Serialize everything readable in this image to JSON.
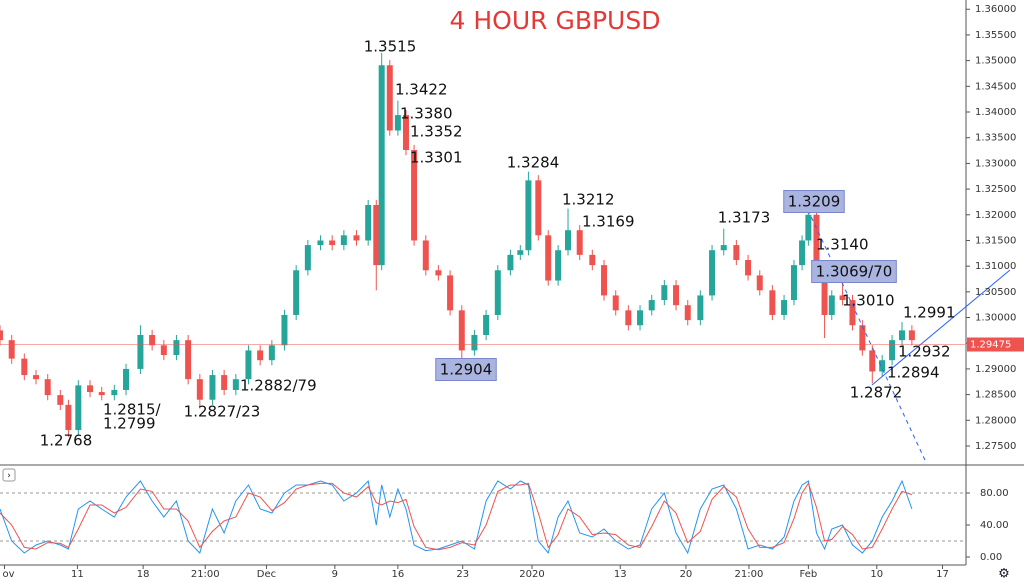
{
  "chart_data": {
    "type": "candlestick",
    "title": "4 HOUR GBPUSD",
    "x": [
      0,
      1.3,
      2.7,
      4,
      5.3,
      6.7,
      7.6,
      8.7,
      10,
      11.3,
      12.7,
      14,
      15.6,
      16.9,
      18.2,
      19.6,
      20.9,
      22.2,
      23.6,
      24.9,
      26.2,
      27.6,
      28.9,
      30.2,
      31.6,
      32.9,
      34.2,
      35.6,
      36.9,
      38.2,
      39.6,
      40.9,
      41.8,
      42.4,
      43.3,
      44.2,
      45.1,
      46,
      47.3,
      48.7,
      50,
      51.3,
      52.7,
      54,
      55.3,
      56.7,
      57.8,
      58.7,
      59.8,
      60.9,
      62,
      63.1,
      64.4,
      65.8,
      67.1,
      68.4,
      69.8,
      71.1,
      72.4,
      73.8,
      75.1,
      76.4,
      77.8,
      79.1,
      80.4,
      81.8,
      83.1,
      84.4,
      85.8,
      87.1,
      88.2,
      89.1,
      89.8,
      90.7,
      91.6,
      92.4,
      93.6,
      94.7,
      95.8,
      96.9,
      98,
      99.1,
      100.2,
      101.3
    ],
    "open": [
      1.2975,
      1.2956,
      1.292,
      1.2888,
      1.288,
      1.2849,
      1.283,
      1.2781,
      1.2868,
      1.2855,
      1.2849,
      1.2859,
      1.29,
      1.2966,
      1.2946,
      1.2927,
      1.2956,
      1.288,
      1.284,
      1.2888,
      1.2859,
      1.288,
      1.2936,
      1.2917,
      1.2946,
      1.3005,
      1.3092,
      1.3141,
      1.315,
      1.3141,
      1.316,
      1.315,
      1.3219,
      1.3102,
      1.3491,
      1.3364,
      1.3394,
      1.3326,
      1.315,
      1.3092,
      1.3082,
      1.3014,
      1.2936,
      1.2966,
      1.3005,
      1.3092,
      1.3122,
      1.3131,
      1.3267,
      1.316,
      1.3072,
      1.3131,
      1.317,
      1.3122,
      1.3102,
      1.3043,
      1.3014,
      1.2985,
      1.3014,
      1.3034,
      1.3063,
      1.3024,
      1.2995,
      1.3043,
      1.3131,
      1.3141,
      1.3112,
      1.3082,
      1.3053,
      1.3005,
      1.3034,
      1.3102,
      1.315,
      1.32,
      1.3092,
      1.3005,
      1.3043,
      1.3034,
      1.2985,
      1.2936,
      1.2895,
      1.2917,
      1.2956,
      1.2975
    ],
    "high": [
      1.2985,
      1.2966,
      1.293,
      1.2898,
      1.289,
      1.2859,
      1.284,
      1.2878,
      1.2878,
      1.2865,
      1.2869,
      1.291,
      1.2985,
      1.2976,
      1.2956,
      1.2966,
      1.2966,
      1.289,
      1.2898,
      1.2898,
      1.289,
      1.2946,
      1.2946,
      1.2956,
      1.3015,
      1.3102,
      1.3151,
      1.316,
      1.316,
      1.317,
      1.317,
      1.3229,
      1.3229,
      1.3515,
      1.3501,
      1.3422,
      1.3404,
      1.3336,
      1.316,
      1.3102,
      1.3092,
      1.3024,
      1.2976,
      1.3015,
      1.3102,
      1.3132,
      1.3141,
      1.3284,
      1.3277,
      1.317,
      1.3141,
      1.3212,
      1.318,
      1.3132,
      1.3112,
      1.3053,
      1.3024,
      1.3024,
      1.3044,
      1.3073,
      1.3073,
      1.3034,
      1.3053,
      1.3141,
      1.3173,
      1.3151,
      1.3122,
      1.3092,
      1.3063,
      1.3044,
      1.3112,
      1.316,
      1.3209,
      1.321,
      1.3102,
      1.3053,
      1.3069,
      1.3044,
      1.2995,
      1.2946,
      1.2927,
      1.2966,
      1.2991,
      1.2985
    ],
    "low": [
      1.2946,
      1.291,
      1.2878,
      1.287,
      1.2839,
      1.282,
      1.2768,
      1.2771,
      1.2845,
      1.2839,
      1.2839,
      1.2849,
      1.289,
      1.2936,
      1.2917,
      1.2917,
      1.287,
      1.2823,
      1.283,
      1.2849,
      1.2849,
      1.287,
      1.2907,
      1.2907,
      1.2936,
      1.2995,
      1.3082,
      1.3131,
      1.3131,
      1.3131,
      1.314,
      1.314,
      1.3053,
      1.3092,
      1.3354,
      1.3354,
      1.3316,
      1.314,
      1.3082,
      1.3072,
      1.3004,
      1.2904,
      1.2926,
      1.2956,
      1.2995,
      1.3082,
      1.3112,
      1.3121,
      1.315,
      1.3062,
      1.3062,
      1.3121,
      1.3112,
      1.3092,
      1.3033,
      1.3004,
      1.2975,
      1.2975,
      1.3004,
      1.3024,
      1.3014,
      1.2985,
      1.2985,
      1.3033,
      1.3121,
      1.3102,
      1.3072,
      1.3043,
      1.2995,
      1.2995,
      1.3024,
      1.3092,
      1.314,
      1.3082,
      1.296,
      1.2995,
      1.3024,
      1.2975,
      1.2926,
      1.2872,
      1.2885,
      1.2907,
      1.2946,
      1.2946
    ],
    "close": [
      1.2956,
      1.292,
      1.2888,
      1.288,
      1.2849,
      1.283,
      1.2781,
      1.2868,
      1.2855,
      1.2849,
      1.2859,
      1.29,
      1.2966,
      1.2946,
      1.2927,
      1.2956,
      1.288,
      1.284,
      1.2888,
      1.2859,
      1.288,
      1.2936,
      1.2917,
      1.2946,
      1.3005,
      1.3092,
      1.3141,
      1.315,
      1.3141,
      1.316,
      1.315,
      1.3219,
      1.3102,
      1.3491,
      1.3364,
      1.3394,
      1.3326,
      1.315,
      1.3092,
      1.3082,
      1.3014,
      1.2936,
      1.2966,
      1.3005,
      1.3092,
      1.3122,
      1.3131,
      1.3267,
      1.316,
      1.3072,
      1.3131,
      1.317,
      1.3122,
      1.3102,
      1.3043,
      1.3014,
      1.2985,
      1.3014,
      1.3034,
      1.3063,
      1.3024,
      1.2995,
      1.3043,
      1.3131,
      1.3141,
      1.3112,
      1.3082,
      1.3053,
      1.3005,
      1.3034,
      1.3102,
      1.315,
      1.32,
      1.3092,
      1.3005,
      1.3043,
      1.3034,
      1.2985,
      1.2936,
      1.2895,
      1.2917,
      1.2956,
      1.2975,
      1.2956
    ],
    "up_color": "#26a69a",
    "down_color": "#ef5350",
    "xlim": [
      0,
      107.2
    ],
    "xticks": [
      {
        "value": 0.5,
        "label": "ov"
      },
      {
        "value": 8.6,
        "label": "11"
      },
      {
        "value": 15.9,
        "label": "18"
      },
      {
        "value": 22.8,
        "label": "21:00"
      },
      {
        "value": 29.6,
        "label": "Dec"
      },
      {
        "value": 37.2,
        "label": "9"
      },
      {
        "value": 44.2,
        "label": "16"
      },
      {
        "value": 51.4,
        "label": "23"
      },
      {
        "value": 59.1,
        "label": "2020"
      },
      {
        "value": 68.9,
        "label": "13"
      },
      {
        "value": 76.2,
        "label": "20"
      },
      {
        "value": 83.2,
        "label": "21:00"
      },
      {
        "value": 89.8,
        "label": "Feb"
      },
      {
        "value": 97.4,
        "label": "10"
      },
      {
        "value": 104.7,
        "label": "17"
      }
    ],
    "ylim": [
      1.2713,
      1.3618
    ],
    "yticks": [
      {
        "value": 1.275,
        "label": "1.27500"
      },
      {
        "value": 1.28,
        "label": "1.28000"
      },
      {
        "value": 1.285,
        "label": "1.28500"
      },
      {
        "value": 1.29,
        "label": "1.29000"
      },
      {
        "value": 1.295,
        "label": "1.29500"
      },
      {
        "value": 1.3,
        "label": "1.30000"
      },
      {
        "value": 1.305,
        "label": "1.30500"
      },
      {
        "value": 1.31,
        "label": "1.31000"
      },
      {
        "value": 1.315,
        "label": "1.31500"
      },
      {
        "value": 1.32,
        "label": "1.32000"
      },
      {
        "value": 1.325,
        "label": "1.32500"
      },
      {
        "value": 1.33,
        "label": "1.33000"
      },
      {
        "value": 1.335,
        "label": "1.33500"
      },
      {
        "value": 1.34,
        "label": "1.34000"
      },
      {
        "value": 1.345,
        "label": "1.34500"
      },
      {
        "value": 1.35,
        "label": "1.35000"
      },
      {
        "value": 1.355,
        "label": "1.35500"
      },
      {
        "value": 1.36,
        "label": "1.36000"
      }
    ],
    "last_price": 1.29475,
    "last_price_color": "#ef5350",
    "annotations": [
      "1.3515",
      "1.3422",
      "1.3380",
      "1.3352",
      "1.3301",
      "1.3284",
      "1.3212",
      "1.3169",
      "1.3173",
      "1.3209",
      "1.3140",
      "1.3069/70",
      "1.3010",
      "1.2991",
      "1.2932",
      "1.2894",
      "1.2872",
      "1.2904",
      "1.2882/79",
      "1.2815/",
      "1.2799",
      "1.2827/23",
      "1.2768"
    ],
    "indicator": {
      "type": "line",
      "ylim": [
        -10,
        113.75
      ],
      "yticks": [
        {
          "value": 0,
          "label": "0.00"
        },
        {
          "value": 40,
          "label": "40.00"
        },
        {
          "value": 80,
          "label": "80.00"
        }
      ],
      "levels": [
        20,
        80
      ],
      "series": [
        {
          "color": "#2196f3",
          "values": [
            60,
            20,
            5,
            15,
            20,
            15,
            10,
            60,
            70,
            60,
            50,
            75,
            95,
            70,
            50,
            70,
            20,
            5,
            60,
            30,
            70,
            90,
            60,
            55,
            80,
            90,
            90,
            95,
            90,
            70,
            80,
            95,
            40,
            90,
            50,
            85,
            60,
            15,
            8,
            10,
            15,
            20,
            10,
            70,
            95,
            85,
            95,
            90,
            20,
            5,
            50,
            70,
            30,
            25,
            35,
            20,
            10,
            15,
            60,
            80,
            30,
            5,
            60,
            85,
            90,
            60,
            10,
            15,
            10,
            25,
            70,
            90,
            95,
            30,
            10,
            35,
            40,
            15,
            5,
            20,
            50,
            70,
            95,
            60
          ]
        },
        {
          "color": "#ef5350",
          "values": [
            55,
            40,
            12,
            10,
            18,
            17,
            12,
            35,
            65,
            65,
            55,
            62,
            85,
            82,
            60,
            60,
            45,
            12,
            32,
            45,
            50,
            80,
            75,
            58,
            68,
            85,
            90,
            92,
            92,
            80,
            75,
            88,
            68,
            65,
            70,
            68,
            72,
            38,
            12,
            9,
            12,
            18,
            15,
            40,
            82,
            90,
            90,
            92,
            55,
            12,
            28,
            60,
            50,
            28,
            30,
            28,
            15,
            12,
            38,
            70,
            55,
            18,
            32,
            72,
            88,
            75,
            35,
            12,
            12,
            18,
            48,
            80,
            92,
            62,
            20,
            22,
            38,
            28,
            10,
            12,
            35,
            60,
            82,
            78
          ]
        }
      ]
    }
  }
}
